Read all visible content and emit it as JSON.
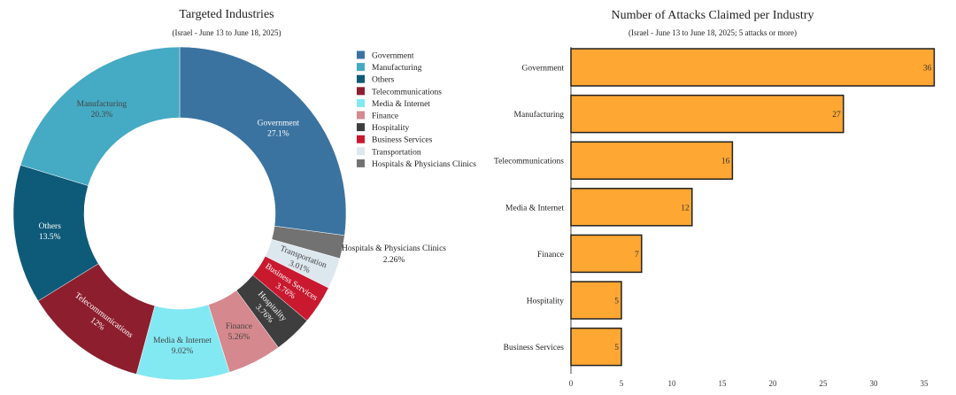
{
  "chart_data": [
    {
      "type": "pie",
      "title": "Targeted Industries",
      "subtitle": "(Israel - June 13 to June 18, 2025)",
      "hole": true,
      "legend_placement": "right",
      "slices": [
        {
          "label": "Government",
          "value": 27.1,
          "text": "27.1%",
          "color": "#3a73a0"
        },
        {
          "label": "Hospitals & Physicians Clinics",
          "value": 2.26,
          "text": "2.26%",
          "color": "#727272"
        },
        {
          "label": "Transportation",
          "value": 3.01,
          "text": "3.01%",
          "color": "#dce7ee"
        },
        {
          "label": "Business Services",
          "value": 3.76,
          "text": "3.76%",
          "color": "#c9192f"
        },
        {
          "label": "Hospitality",
          "value": 3.76,
          "text": "3.76%",
          "color": "#3e3e3e"
        },
        {
          "label": "Finance",
          "value": 5.26,
          "text": "5.26%",
          "color": "#d5888d"
        },
        {
          "label": "Media & Internet",
          "value": 9.02,
          "text": "9.02%",
          "color": "#82e9f3"
        },
        {
          "label": "Telecommunications",
          "value": 12,
          "text": "12%",
          "color": "#8d1e2e"
        },
        {
          "label": "Others",
          "value": 13.5,
          "text": "13.5%",
          "color": "#0e5a79"
        },
        {
          "label": "Manufacturing",
          "value": 20.3,
          "text": "20.3%",
          "color": "#45aac3"
        }
      ],
      "legend": [
        "Government",
        "Manufacturing",
        "Others",
        "Telecommunications",
        "Media & Internet",
        "Finance",
        "Hospitality",
        "Business Services",
        "Transportation",
        "Hospitals & Physicians Clinics"
      ]
    },
    {
      "type": "bar",
      "orientation": "horizontal",
      "title": "Number of Attacks Claimed per Industry",
      "subtitle": "(Israel - June 13 to June 18, 2025; 5 attacks or more)",
      "categories": [
        "Government",
        "Manufacturing",
        "Telecommunications",
        "Media & Internet",
        "Finance",
        "Hospitality",
        "Business Services"
      ],
      "values": [
        36,
        27,
        16,
        12,
        7,
        5,
        5
      ],
      "xlim": [
        0,
        36
      ],
      "xticks": [
        0,
        5,
        10,
        15,
        20,
        25,
        30,
        35
      ],
      "bar_color": "#ffa733"
    }
  ]
}
